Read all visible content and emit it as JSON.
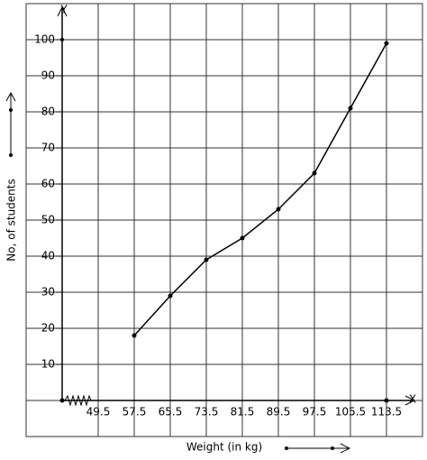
{
  "chart_data": {
    "type": "line",
    "y_axis_name": "Y",
    "x_axis_name": "X",
    "y_label": "No, of students",
    "x_label": "Weight (in kg)",
    "x": [
      57.5,
      65.5,
      73.5,
      81.5,
      89.5,
      97.5,
      105.5,
      113.5
    ],
    "series": [
      {
        "color": "#000000",
        "values": [
          18,
          29,
          39,
          45,
          53,
          63,
          81,
          99
        ]
      }
    ],
    "xlim": [
      41.5,
      121.5
    ],
    "ylim": [
      0,
      110
    ],
    "xticks": [
      49.5,
      57.5,
      65.5,
      73.5,
      81.5,
      89.5,
      97.5,
      105.5,
      113.5
    ],
    "yticks": [
      10,
      20,
      30,
      40,
      50,
      60,
      70,
      80,
      90,
      100
    ],
    "grid": true
  }
}
